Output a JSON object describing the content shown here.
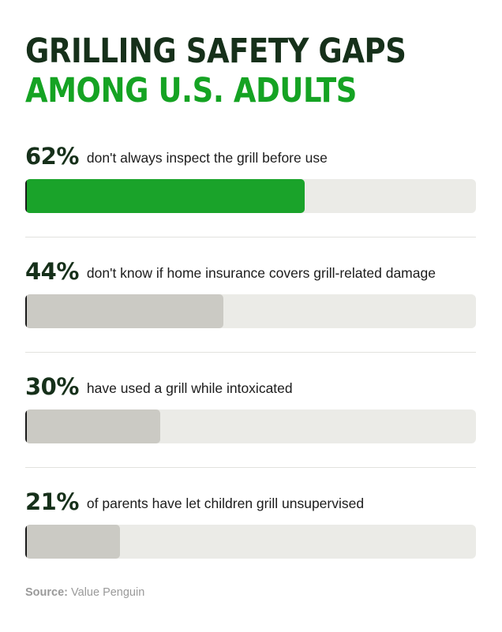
{
  "title": {
    "line1": "GRILLING SAFETY GAPS",
    "line2": "AMONG U.S. ADULTS"
  },
  "colors": {
    "title_dark": "#16301a",
    "title_accent": "#15a323",
    "highlight_bar": "#1aa32a",
    "muted_bar": "#cbcac4",
    "track": "#ebebe7"
  },
  "chart_data": {
    "type": "bar",
    "orientation": "horizontal",
    "title": "GRILLING SAFETY GAPS AMONG U.S. ADULTS",
    "xlim": [
      0,
      100
    ],
    "categories": [
      "don't always inspect the grill before use",
      "don't know if home insurance covers grill-related damage",
      "have used a grill while intoxicated",
      "of parents have let children grill unsupervised"
    ],
    "values": [
      62,
      44,
      30,
      21
    ],
    "value_labels": [
      "62%",
      "44%",
      "30%",
      "21%"
    ],
    "highlighted_index": 0
  },
  "source": {
    "label": "Source:",
    "text": "Value Penguin"
  }
}
